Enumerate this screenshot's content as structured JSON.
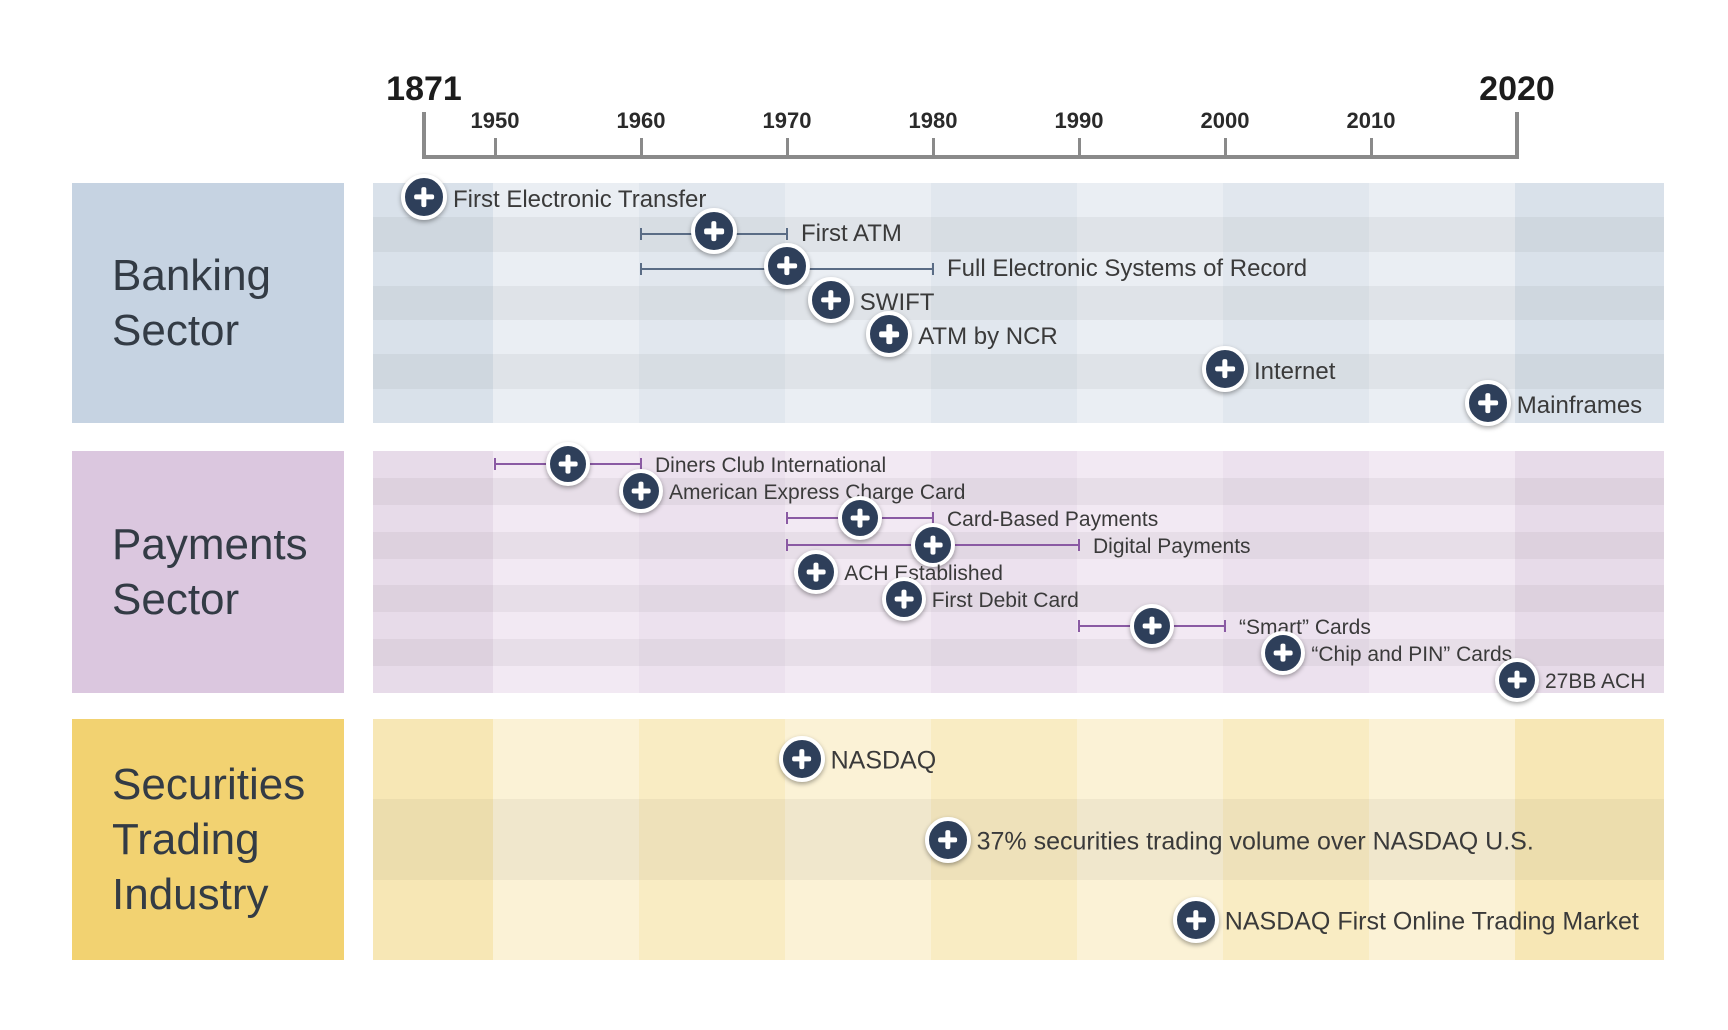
{
  "timeline": {
    "start_label": "1871",
    "end_label": "2020",
    "ticks": [
      "1950",
      "1960",
      "1970",
      "1980",
      "1990",
      "2000",
      "2010"
    ]
  },
  "sectors": [
    {
      "name": "Banking\nSector",
      "key": "banking",
      "colors": {
        "label_bg": "#c6d3e2",
        "band_light": "#eaeef3",
        "band_dark": "#d9e1ea",
        "range": "#5a6c85"
      },
      "events": [
        {
          "label": "First Electronic Transfer",
          "year": 1871
        },
        {
          "label": "First ATM",
          "year": 1965,
          "range": [
            1960,
            1970
          ]
        },
        {
          "label": "Full Electronic Systems of Record",
          "year": 1970,
          "range": [
            1960,
            1980
          ]
        },
        {
          "label": "SWIFT",
          "year": 1973
        },
        {
          "label": "ATM by NCR",
          "year": 1977
        },
        {
          "label": "Internet",
          "year": 2000
        },
        {
          "label": "Mainframes",
          "year": 2018
        }
      ]
    },
    {
      "name": "Payments\nSector",
      "key": "payments",
      "colors": {
        "label_bg": "#dbc7df",
        "band_light": "#f2e9f3",
        "band_dark": "#e7dbe9",
        "range": "#8a5aa3"
      },
      "events": [
        {
          "label": "Diners Club International",
          "year": 1955,
          "range": [
            1950,
            1960
          ]
        },
        {
          "label": "American Express Charge Card",
          "year": 1960
        },
        {
          "label": "Card-Based Payments",
          "year": 1975,
          "range": [
            1970,
            1980
          ]
        },
        {
          "label": "Digital Payments",
          "year": 1980,
          "range": [
            1970,
            1990
          ]
        },
        {
          "label": "ACH Established",
          "year": 1972
        },
        {
          "label": "First Debit Card",
          "year": 1978
        },
        {
          "label": "“Smart” Cards",
          "year": 1995,
          "range": [
            1990,
            2000
          ]
        },
        {
          "label": "“Chip and PIN” Cards",
          "year": 2004
        },
        {
          "label": "27BB ACH",
          "year": 2020
        }
      ]
    },
    {
      "name": "Securities\nTrading\nIndustry",
      "key": "securities",
      "colors": {
        "label_bg": "#f2d271",
        "band_light": "#fbf2d6",
        "band_dark": "#f7e7b5",
        "range": "#b8962c"
      },
      "events": [
        {
          "label": "NASDAQ",
          "year": 1971
        },
        {
          "label": "37% securities trading volume over NASDAQ U.S.",
          "year": 1981
        },
        {
          "label": "NASDAQ First Online Trading Market",
          "year": 1998
        }
      ]
    }
  ]
}
